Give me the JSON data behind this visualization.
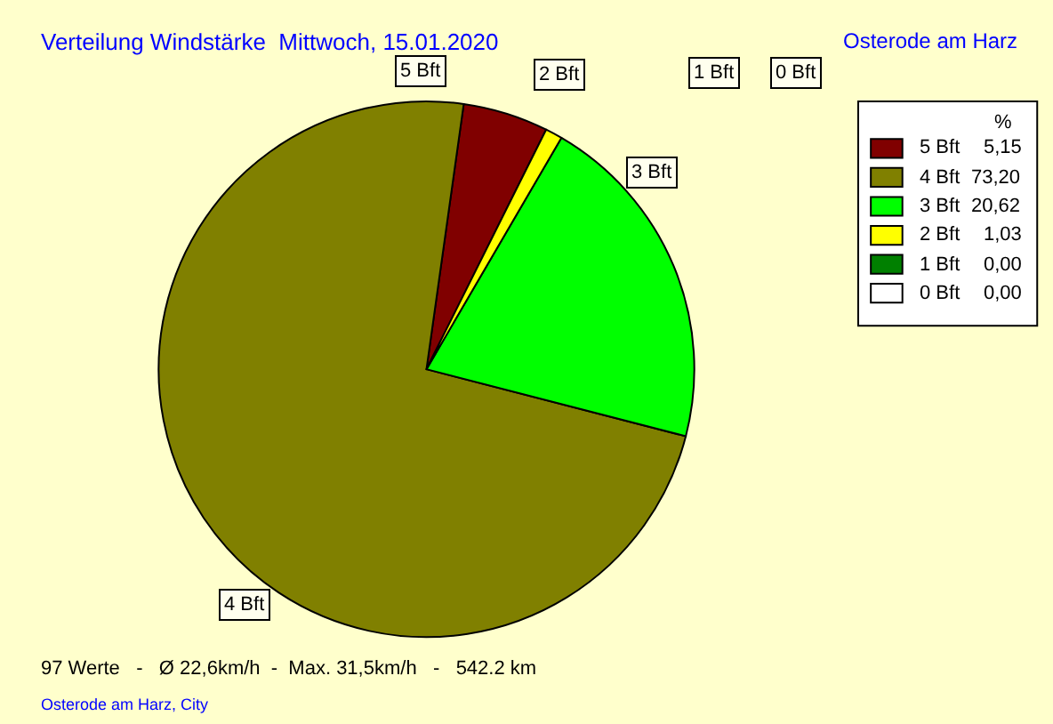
{
  "chart_data": {
    "type": "pie",
    "title": "Verteilung Windstärke  Mittwoch, 15.01.2020",
    "subtitle": "Osterode am Harz",
    "categories": [
      "5 Bft",
      "4 Bft",
      "3 Bft",
      "2 Bft",
      "1 Bft",
      "0 Bft"
    ],
    "values": [
      5.15,
      73.2,
      20.62,
      1.03,
      0.0,
      0.0
    ],
    "value_labels": [
      "5,15",
      "73,20",
      "20,62",
      "1,03",
      "0,00",
      "0,00"
    ],
    "colors": [
      "#800000",
      "#808000",
      "#00ff00",
      "#ffff00",
      "#008000",
      "#ffffff"
    ],
    "legend_title": "%",
    "legend": "top right",
    "annotations": [
      "97 Werte   -   Ø 22,6km/h  -  Max. 31,5km/h   -   542.2 km",
      "Osterode am Harz, City"
    ]
  }
}
